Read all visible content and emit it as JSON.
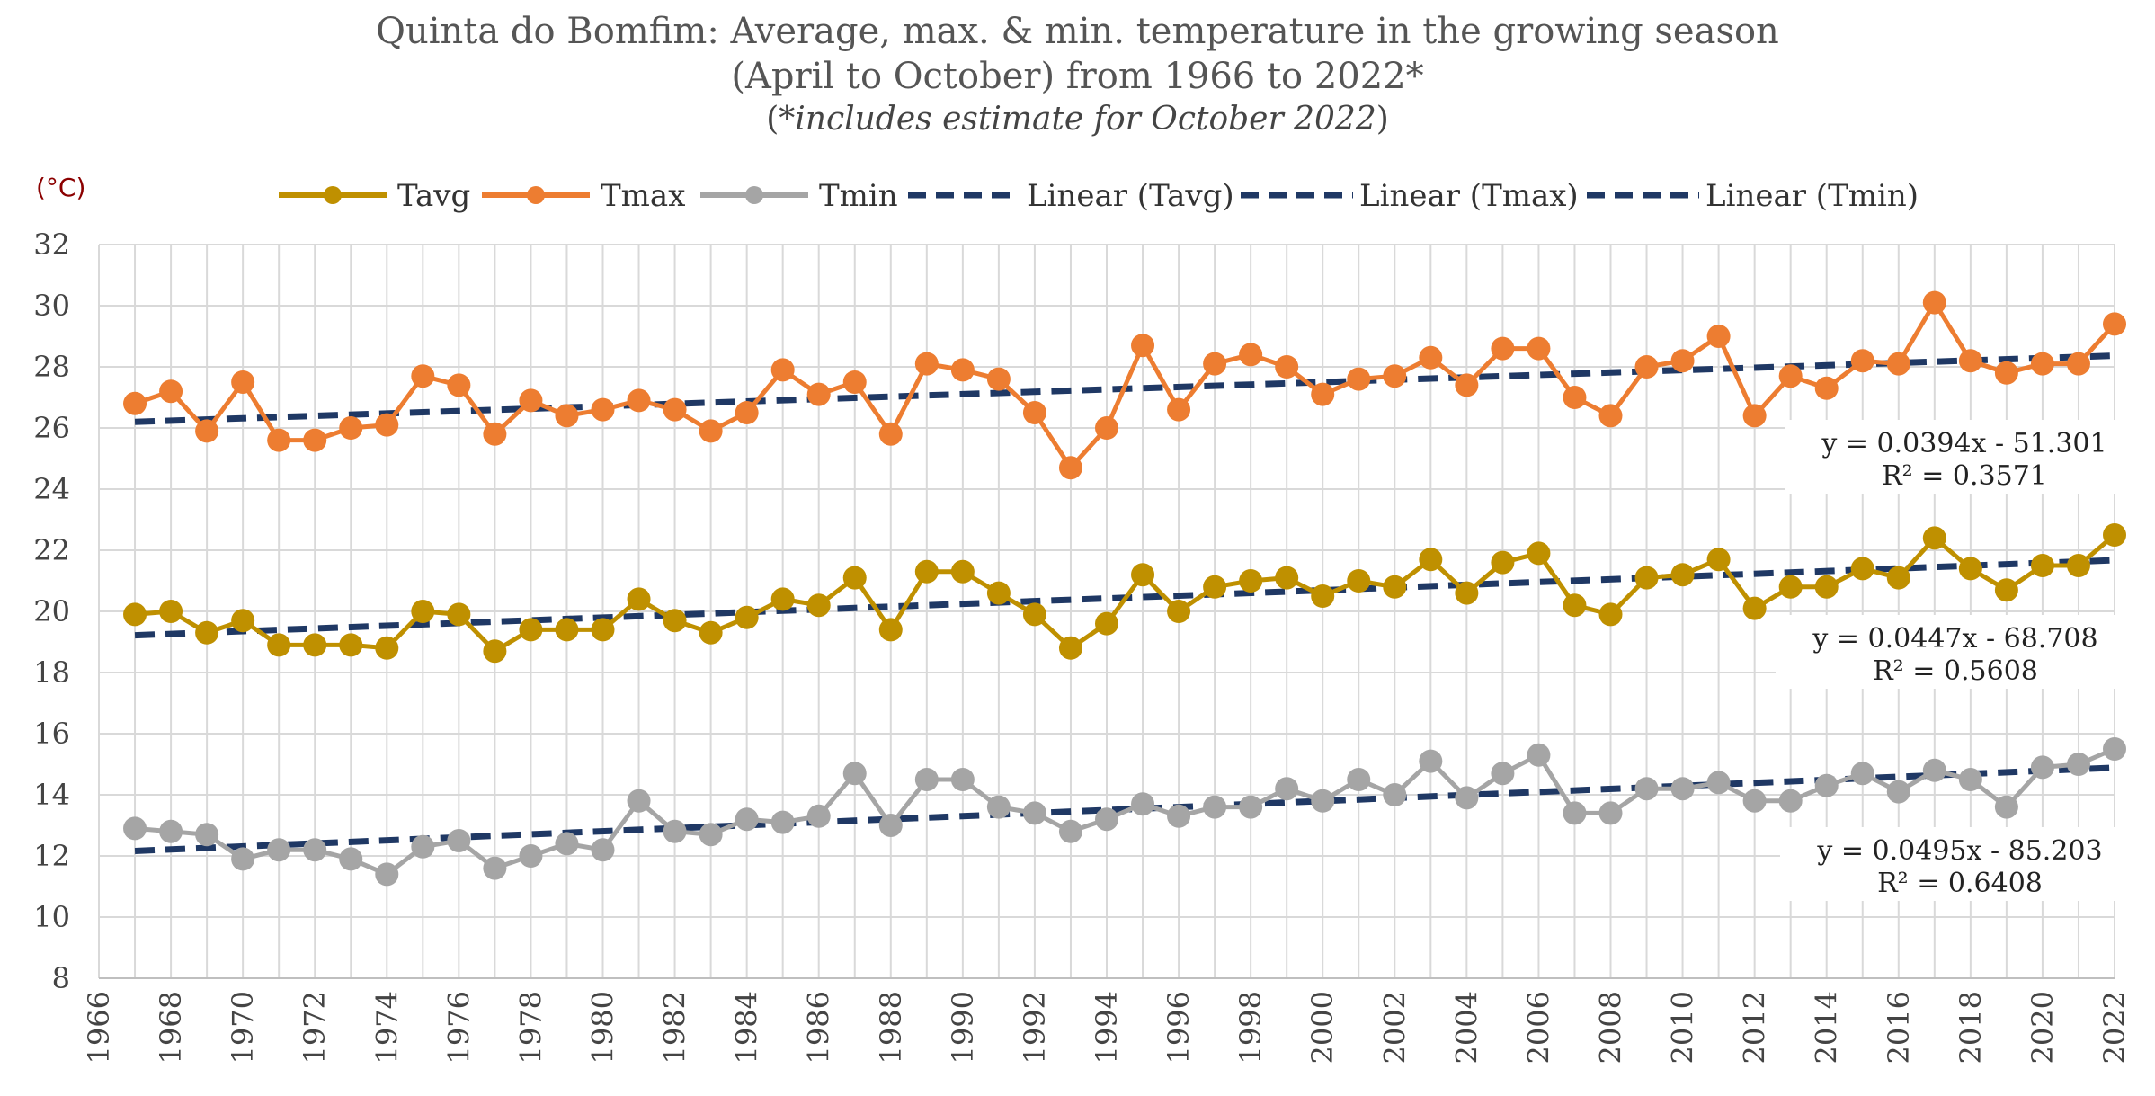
{
  "title_line1": "Quinta do Bomfim: Average, max. & min. temperature in the growing season",
  "title_line2": "(April to October) from 1966 to 2022*",
  "title_line3_open": "(",
  "title_line3_italic": "*includes estimate for October 2022",
  "title_line3_close": ")",
  "chart_data": {
    "type": "line",
    "unit_label": "(°C)",
    "x_range": [
      1966,
      2022
    ],
    "y_range": [
      8,
      32
    ],
    "x_ticks": [
      1966,
      1968,
      1970,
      1972,
      1974,
      1976,
      1978,
      1980,
      1982,
      1984,
      1986,
      1988,
      1990,
      1992,
      1994,
      1996,
      1998,
      2000,
      2002,
      2004,
      2006,
      2008,
      2010,
      2012,
      2014,
      2016,
      2018,
      2020,
      2022
    ],
    "y_ticks": [
      8,
      10,
      12,
      14,
      16,
      18,
      20,
      22,
      24,
      26,
      28,
      30,
      32
    ],
    "grid": true,
    "legend_position": "top",
    "x": [
      1967,
      1968,
      1969,
      1970,
      1971,
      1972,
      1973,
      1974,
      1975,
      1976,
      1977,
      1978,
      1979,
      1980,
      1981,
      1982,
      1983,
      1984,
      1985,
      1986,
      1987,
      1988,
      1989,
      1990,
      1991,
      1992,
      1993,
      1994,
      1995,
      1996,
      1997,
      1998,
      1999,
      2000,
      2001,
      2002,
      2003,
      2004,
      2005,
      2006,
      2007,
      2008,
      2009,
      2010,
      2011,
      2012,
      2013,
      2014,
      2015,
      2016,
      2017,
      2018,
      2019,
      2020,
      2021,
      2022
    ],
    "series": [
      {
        "name": "Tavg",
        "color": "#bf9000",
        "values": [
          19.9,
          20.0,
          19.3,
          19.7,
          18.9,
          18.9,
          18.9,
          18.8,
          20.0,
          19.9,
          18.7,
          19.4,
          19.4,
          19.4,
          20.4,
          19.7,
          19.3,
          19.8,
          20.4,
          20.2,
          21.1,
          19.4,
          21.3,
          21.3,
          20.6,
          19.9,
          18.8,
          19.6,
          21.2,
          20.0,
          20.8,
          21.0,
          21.1,
          20.5,
          21.0,
          20.8,
          21.7,
          20.6,
          21.6,
          21.9,
          20.2,
          19.9,
          21.1,
          21.2,
          21.7,
          20.1,
          20.8,
          20.8,
          21.4,
          21.1,
          22.4,
          21.4,
          20.7,
          21.5,
          21.5,
          22.5
        ]
      },
      {
        "name": "Tmax",
        "color": "#ed7d31",
        "values": [
          26.8,
          27.2,
          25.9,
          27.5,
          25.6,
          25.6,
          26.0,
          26.1,
          27.7,
          27.4,
          25.8,
          26.9,
          26.4,
          26.6,
          26.9,
          26.6,
          25.9,
          26.5,
          27.9,
          27.1,
          27.5,
          25.8,
          28.1,
          27.9,
          27.6,
          26.5,
          24.7,
          26.0,
          28.7,
          26.6,
          28.1,
          28.4,
          28.0,
          27.1,
          27.6,
          27.7,
          28.3,
          27.4,
          28.6,
          28.6,
          27.0,
          26.4,
          28.0,
          28.2,
          29.0,
          26.4,
          27.7,
          27.3,
          28.2,
          28.1,
          30.1,
          28.2,
          27.8,
          28.1,
          28.1,
          29.4
        ]
      },
      {
        "name": "Tmin",
        "color": "#a5a5a5",
        "values": [
          12.9,
          12.8,
          12.7,
          11.9,
          12.2,
          12.2,
          11.9,
          11.4,
          12.3,
          12.5,
          11.6,
          12.0,
          12.4,
          12.2,
          13.8,
          12.8,
          12.7,
          13.2,
          13.1,
          13.3,
          14.7,
          13.0,
          14.5,
          14.5,
          13.6,
          13.4,
          12.8,
          13.2,
          13.7,
          13.3,
          13.6,
          13.6,
          14.2,
          13.8,
          14.5,
          14.0,
          15.1,
          13.9,
          14.7,
          15.3,
          13.4,
          13.4,
          14.2,
          14.2,
          14.4,
          13.8,
          13.8,
          14.3,
          14.7,
          14.1,
          14.8,
          14.5,
          13.6,
          14.9,
          15.0,
          15.5
        ]
      }
    ],
    "trendlines": [
      {
        "name": "Linear (Tavg)",
        "color": "#1f3864",
        "slope": 0.0447,
        "intercept": -68.708,
        "equation": "y = 0.0447x - 68.708",
        "r2": "R² = 0.5608"
      },
      {
        "name": "Linear (Tmax)",
        "color": "#1f3864",
        "slope": 0.0394,
        "intercept": -51.301,
        "equation": "y = 0.0394x - 51.301",
        "r2": "R² = 0.3571"
      },
      {
        "name": "Linear (Tmin)",
        "color": "#1f3864",
        "slope": 0.0495,
        "intercept": -85.203,
        "equation": "y = 0.0495x - 85.203",
        "r2": "R² = 0.6408"
      }
    ],
    "legend": [
      "Tavg",
      "Tmax",
      "Tmin",
      "Linear (Tavg)",
      "Linear (Tmax)",
      "Linear (Tmin)"
    ]
  }
}
